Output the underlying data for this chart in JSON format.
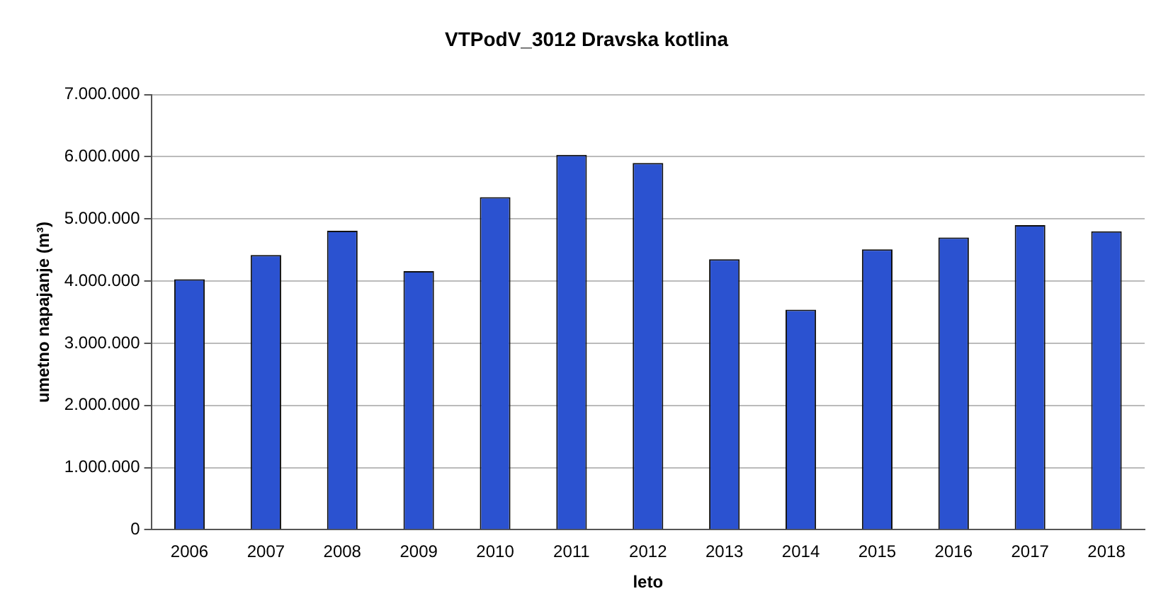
{
  "chart_data": {
    "type": "bar",
    "title": "VTPodV_3012 Dravska kotlina",
    "xlabel": "leto",
    "ylabel": "umetno napajanje (m³)",
    "categories": [
      "2006",
      "2007",
      "2008",
      "2009",
      "2010",
      "2011",
      "2012",
      "2013",
      "2014",
      "2015",
      "2016",
      "2017",
      "2018"
    ],
    "values": [
      4030000,
      4420000,
      4810000,
      4160000,
      5350000,
      6030000,
      5900000,
      4350000,
      3540000,
      4510000,
      4700000,
      4900000,
      4800000
    ],
    "color": "#2b52d0",
    "ylim": [
      0,
      7000000
    ],
    "yticks": [
      {
        "value": 0,
        "label": "0"
      },
      {
        "value": 1000000,
        "label": "1.000.000"
      },
      {
        "value": 2000000,
        "label": "2.000.000"
      },
      {
        "value": 3000000,
        "label": "3.000.000"
      },
      {
        "value": 4000000,
        "label": "4.000.000"
      },
      {
        "value": 5000000,
        "label": "5.000.000"
      },
      {
        "value": 6000000,
        "label": "6.000.000"
      },
      {
        "value": 7000000,
        "label": "7.000.000"
      }
    ],
    "grid": "y",
    "legend": false
  }
}
